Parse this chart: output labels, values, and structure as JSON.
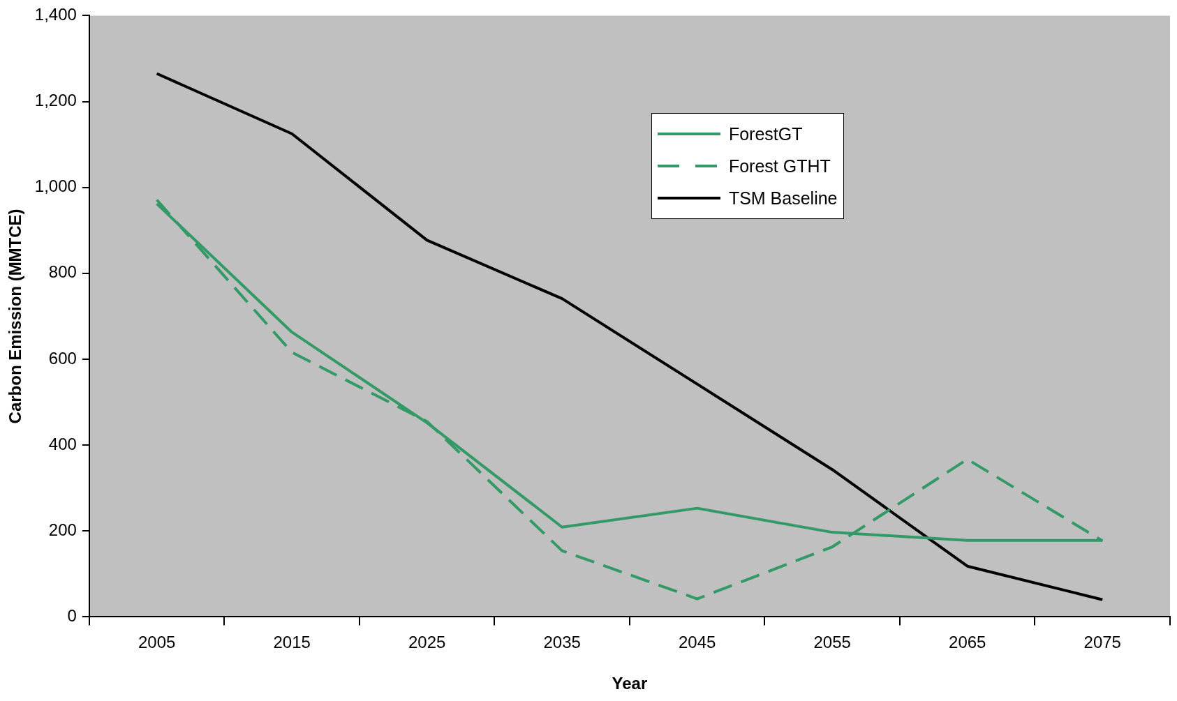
{
  "chart_data": {
    "type": "line",
    "xlabel": "Year",
    "ylabel": "Carbon Emission (MMTCE)",
    "categories": [
      "2005",
      "2015",
      "2025",
      "2035",
      "2045",
      "2055",
      "2065",
      "2075"
    ],
    "series": [
      {
        "name": "ForestGT",
        "color": "#339966",
        "line_style": "solid",
        "values": [
          962,
          663,
          452,
          209,
          253,
          197,
          178,
          178
        ]
      },
      {
        "name": "Forest GTHT",
        "color": "#339966",
        "line_style": "dashed",
        "values": [
          971,
          616,
          455,
          154,
          42,
          163,
          367,
          177
        ]
      },
      {
        "name": "TSM Baseline",
        "color": "#000000",
        "line_style": "solid",
        "values": [
          1265,
          1125,
          877,
          741,
          542,
          343,
          118,
          40
        ]
      }
    ],
    "ylim": [
      0,
      1400
    ],
    "yticks": [
      0,
      200,
      400,
      600,
      800,
      {
        "value": 1000,
        "label": "1,000"
      },
      {
        "value": 1200,
        "label": "1,200"
      },
      {
        "value": 1400,
        "label": "1,400"
      }
    ],
    "grid": false,
    "legend": "top right",
    "marker": "none"
  }
}
